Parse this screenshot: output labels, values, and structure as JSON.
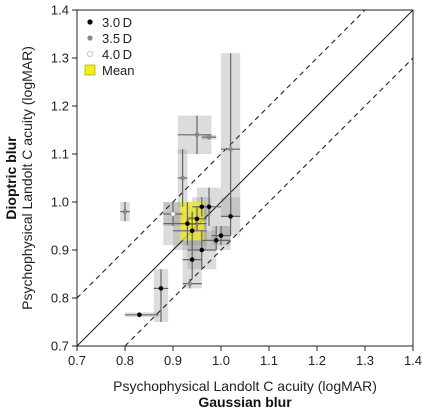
{
  "chart_data": {
    "type": "scatter",
    "xlabel": "Psychophysical Landolt C acuity (logMAR)",
    "xlabel_bold": "Gaussian blur",
    "ylabel": "Psychophysical Landolt C acuity (logMAR)",
    "ylabel_bold": "Dioptric blur",
    "xlim": [
      0.7,
      1.4
    ],
    "ylim": [
      0.7,
      1.4
    ],
    "xticks": [
      "0.7",
      "0.8",
      "0.9",
      "1.0",
      "1.1",
      "1.2",
      "1.3",
      "1.4"
    ],
    "yticks": [
      "0.7",
      "0.8",
      "0.9",
      "1.0",
      "1.1",
      "1.2",
      "1.3",
      "1.4"
    ],
    "legend_position": "top-left",
    "legend": [
      {
        "label": "3.0 D",
        "marker": "black-dot"
      },
      {
        "label": "3.5 D",
        "marker": "gray-dot"
      },
      {
        "label": "4.0 D",
        "marker": "white-dot"
      },
      {
        "label": "Mean",
        "marker": "yellow-square"
      }
    ],
    "reference_lines": [
      {
        "kind": "identity",
        "offset": 0,
        "style": "solid"
      },
      {
        "kind": "offset",
        "offset": 0.1,
        "style": "dashed"
      },
      {
        "kind": "offset",
        "offset": -0.1,
        "style": "dashed"
      }
    ],
    "series": [
      {
        "name": "3.0 D",
        "color": "#000000",
        "points": [
          {
            "x": 0.83,
            "y": 0.765,
            "xerr": [
              0.8,
              0.87
            ],
            "yerr": [
              0.76,
              0.77
            ]
          },
          {
            "x": 0.875,
            "y": 0.82,
            "xerr": [
              0.86,
              0.89
            ],
            "yerr": [
              0.75,
              0.86
            ]
          },
          {
            "x": 0.93,
            "y": 0.955,
            "xerr": [
              0.88,
              0.97
            ],
            "yerr": [
              0.91,
              1.0
            ]
          },
          {
            "x": 0.94,
            "y": 0.94,
            "xerr": [
              0.9,
              0.97
            ],
            "yerr": [
              0.9,
              0.98
            ]
          },
          {
            "x": 0.94,
            "y": 0.88,
            "xerr": [
              0.92,
              0.96
            ],
            "yerr": [
              0.84,
              0.92
            ]
          },
          {
            "x": 0.95,
            "y": 0.965,
            "xerr": [
              0.93,
              0.97
            ],
            "yerr": [
              0.94,
              0.99
            ]
          },
          {
            "x": 0.96,
            "y": 0.99,
            "xerr": [
              0.94,
              0.98
            ],
            "yerr": [
              0.97,
              1.01
            ]
          },
          {
            "x": 0.96,
            "y": 0.9,
            "xerr": [
              0.93,
              0.99
            ],
            "yerr": [
              0.86,
              0.94
            ]
          },
          {
            "x": 0.975,
            "y": 0.99,
            "xerr": [
              0.95,
              1.0
            ],
            "yerr": [
              0.95,
              1.03
            ]
          },
          {
            "x": 0.99,
            "y": 0.92,
            "xerr": [
              0.96,
              1.02
            ],
            "yerr": [
              0.9,
              0.95
            ]
          },
          {
            "x": 1.0,
            "y": 0.93,
            "xerr": [
              0.98,
              1.02
            ],
            "yerr": [
              0.91,
              0.95
            ]
          },
          {
            "x": 1.02,
            "y": 0.97,
            "xerr": [
              1.0,
              1.04
            ],
            "yerr": [
              0.93,
              1.01
            ]
          }
        ]
      },
      {
        "name": "3.5 D",
        "color": "#888888",
        "points": [
          {
            "x": 0.8,
            "y": 0.98,
            "xerr": [
              0.79,
              0.81
            ],
            "yerr": [
              0.96,
              1.0
            ]
          },
          {
            "x": 0.92,
            "y": 1.05,
            "xerr": [
              0.91,
              0.93
            ],
            "yerr": [
              0.99,
              1.11
            ]
          },
          {
            "x": 0.95,
            "y": 1.14,
            "xerr": [
              0.91,
              0.98
            ],
            "yerr": [
              1.1,
              1.18
            ]
          },
          {
            "x": 0.975,
            "y": 1.135,
            "xerr": [
              0.96,
              0.99
            ],
            "yerr": [
              1.13,
              1.14
            ]
          },
          {
            "x": 1.02,
            "y": 1.11,
            "xerr": [
              1.0,
              1.04
            ],
            "yerr": [
              0.97,
              1.31
            ]
          },
          {
            "x": 0.935,
            "y": 0.83,
            "xerr": [
              0.92,
              0.96
            ],
            "yerr": [
              0.82,
              0.84
            ]
          }
        ]
      },
      {
        "name": "4.0 D",
        "color": "#ffffff",
        "points": [
          {
            "x": 0.9,
            "y": 0.975,
            "xerr": [
              0.88,
              0.92
            ],
            "yerr": [
              0.95,
              1.0
            ]
          }
        ]
      }
    ],
    "mean": {
      "x": 0.94,
      "y": 0.96,
      "xerr": [
        0.915,
        0.965
      ],
      "yerr": [
        0.92,
        1.0
      ],
      "color": "#f2ee1c"
    }
  }
}
